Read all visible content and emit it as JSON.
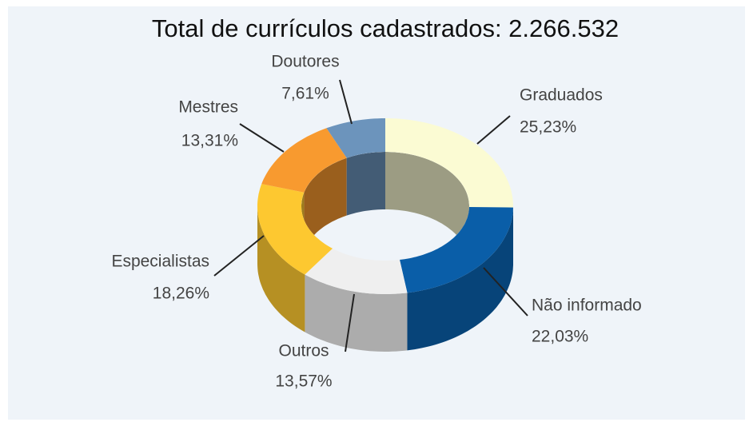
{
  "chart_data": {
    "type": "donut3d",
    "title": "Total de currículos cadastrados: 2.266.532",
    "categories": [
      "Graduados",
      "Não informado",
      "Outros",
      "Especialistas",
      "Mestres",
      "Doutores"
    ],
    "values": [
      25.23,
      22.03,
      13.57,
      18.26,
      13.31,
      7.61
    ],
    "value_labels": [
      "25,23%",
      "22,03%",
      "13,57%",
      "18,26%",
      "13,31%",
      "7,61%"
    ],
    "colors": [
      "#fbfbd3",
      "#0a5ea8",
      "#efefef",
      "#fdc830",
      "#f89a2f",
      "#6c94bc"
    ]
  }
}
